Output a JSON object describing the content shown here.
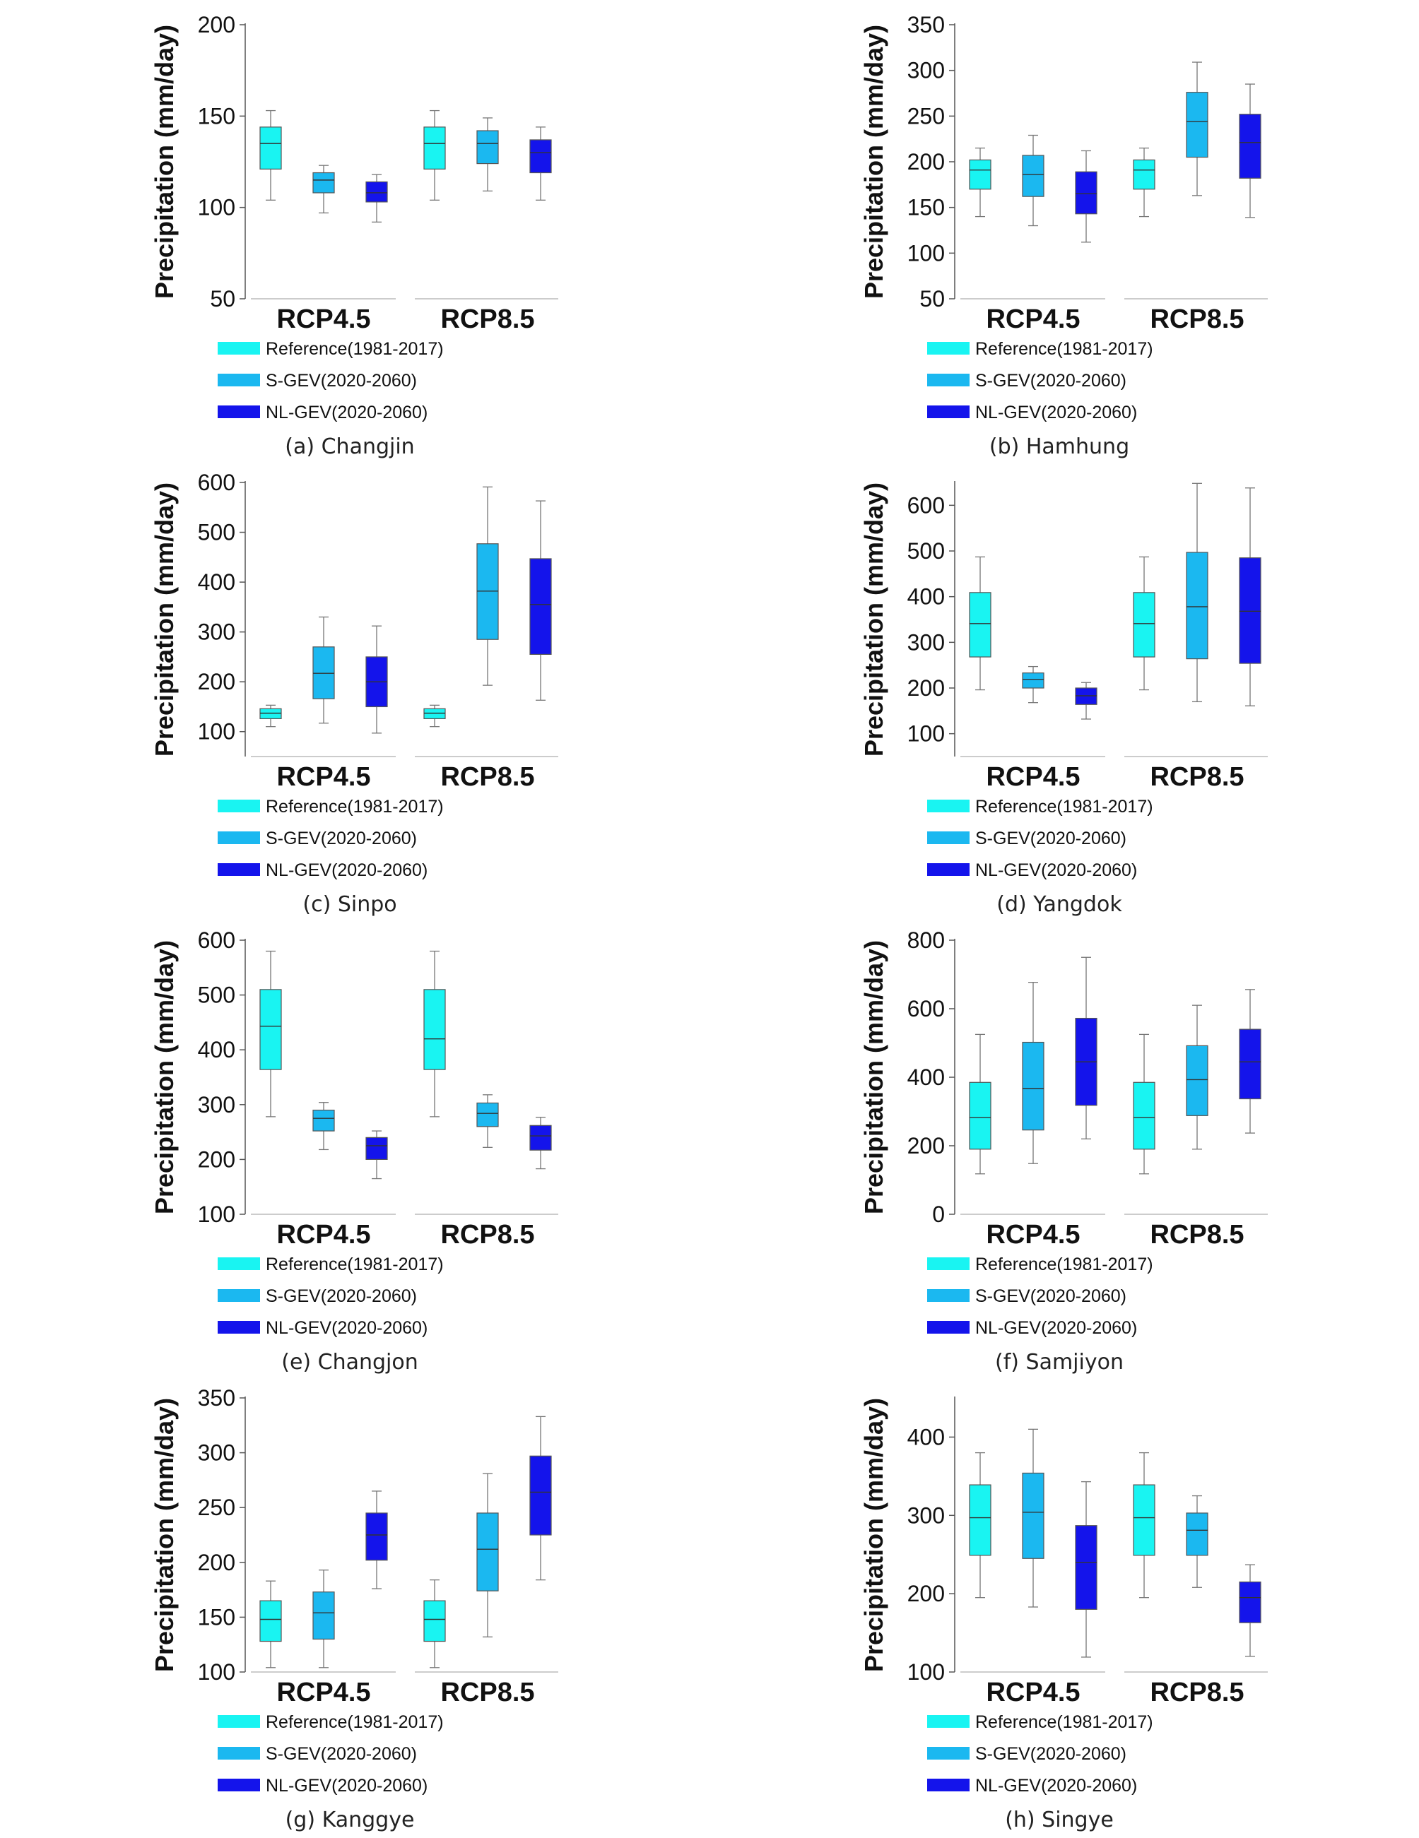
{
  "legend": {
    "items": [
      {
        "label": "Reference(1981-2017)",
        "color": "#19f4f2"
      },
      {
        "label": "S-GEV(2020-2060)",
        "color": "#1bb8f0"
      },
      {
        "label": "NL-GEV(2020-2060)",
        "color": "#1414eb"
      }
    ]
  },
  "chart_data": [
    {
      "type": "box",
      "caption": "(a) Changjin",
      "ylabel": "Precipitation (mm/day)",
      "categories": [
        "RCP4.5",
        "RCP8.5"
      ],
      "ylim": [
        50,
        200
      ],
      "yticks": [
        50,
        100,
        150,
        200
      ],
      "series": [
        {
          "name": "Reference(1981-2017)",
          "boxes": [
            {
              "min": 104,
              "q1": 121,
              "median": 135,
              "q3": 144,
              "max": 153
            },
            {
              "min": 104,
              "q1": 121,
              "median": 135,
              "q3": 144,
              "max": 153
            }
          ]
        },
        {
          "name": "S-GEV(2020-2060)",
          "boxes": [
            {
              "min": 97,
              "q1": 108,
              "median": 115,
              "q3": 119,
              "max": 123
            },
            {
              "min": 109,
              "q1": 124,
              "median": 135,
              "q3": 142,
              "max": 149
            }
          ]
        },
        {
          "name": "NL-GEV(2020-2060)",
          "boxes": [
            {
              "min": 92,
              "q1": 103,
              "median": 108,
              "q3": 114,
              "max": 118
            },
            {
              "min": 104,
              "q1": 119,
              "median": 130,
              "q3": 137,
              "max": 144
            }
          ]
        }
      ]
    },
    {
      "type": "box",
      "caption": "(b) Hamhung",
      "ylabel": "Precipitation (mm/day)",
      "categories": [
        "RCP4.5",
        "RCP8.5"
      ],
      "ylim": [
        50,
        350
      ],
      "yticks": [
        50,
        100,
        150,
        200,
        250,
        300,
        350
      ],
      "series": [
        {
          "name": "Reference(1981-2017)",
          "boxes": [
            {
              "min": 140,
              "q1": 170,
              "median": 191,
              "q3": 202,
              "max": 215
            },
            {
              "min": 140,
              "q1": 170,
              "median": 191,
              "q3": 202,
              "max": 215
            }
          ]
        },
        {
          "name": "S-GEV(2020-2060)",
          "boxes": [
            {
              "min": 130,
              "q1": 162,
              "median": 186,
              "q3": 207,
              "max": 229
            },
            {
              "min": 163,
              "q1": 205,
              "median": 244,
              "q3": 276,
              "max": 309
            }
          ]
        },
        {
          "name": "NL-GEV(2020-2060)",
          "boxes": [
            {
              "min": 112,
              "q1": 143,
              "median": 165,
              "q3": 189,
              "max": 212
            },
            {
              "min": 139,
              "q1": 182,
              "median": 221,
              "q3": 252,
              "max": 285
            }
          ]
        }
      ]
    },
    {
      "type": "box",
      "caption": "(c) Sinpo",
      "ylabel": "Precipitation (mm/day)",
      "categories": [
        "RCP4.5",
        "RCP8.5"
      ],
      "ylim": [
        50,
        600
      ],
      "yticks": [
        100,
        200,
        300,
        400,
        500,
        600
      ],
      "series": [
        {
          "name": "Reference(1981-2017)",
          "boxes": [
            {
              "min": 110,
              "q1": 126,
              "median": 137,
              "q3": 146,
              "max": 153
            },
            {
              "min": 110,
              "q1": 126,
              "median": 137,
              "q3": 146,
              "max": 153
            }
          ]
        },
        {
          "name": "S-GEV(2020-2060)",
          "boxes": [
            {
              "min": 117,
              "q1": 166,
              "median": 217,
              "q3": 270,
              "max": 330
            },
            {
              "min": 193,
              "q1": 285,
              "median": 382,
              "q3": 477,
              "max": 591
            }
          ]
        },
        {
          "name": "NL-GEV(2020-2060)",
          "boxes": [
            {
              "min": 97,
              "q1": 150,
              "median": 200,
              "q3": 250,
              "max": 312
            },
            {
              "min": 163,
              "q1": 255,
              "median": 355,
              "q3": 447,
              "max": 563
            }
          ]
        }
      ]
    },
    {
      "type": "box",
      "caption": "(d) Yangdok",
      "ylabel": "Precipitation (mm/day)",
      "categories": [
        "RCP4.5",
        "RCP8.5"
      ],
      "ylim": [
        50,
        650
      ],
      "yticks": [
        100,
        200,
        300,
        400,
        500,
        600
      ],
      "series": [
        {
          "name": "Reference(1981-2017)",
          "boxes": [
            {
              "min": 196,
              "q1": 268,
              "median": 341,
              "q3": 409,
              "max": 487
            },
            {
              "min": 196,
              "q1": 268,
              "median": 341,
              "q3": 409,
              "max": 487
            }
          ]
        },
        {
          "name": "S-GEV(2020-2060)",
          "boxes": [
            {
              "min": 168,
              "q1": 200,
              "median": 219,
              "q3": 233,
              "max": 247
            },
            {
              "min": 170,
              "q1": 264,
              "median": 378,
              "q3": 497,
              "max": 648
            }
          ]
        },
        {
          "name": "NL-GEV(2020-2060)",
          "boxes": [
            {
              "min": 132,
              "q1": 164,
              "median": 183,
              "q3": 200,
              "max": 212
            },
            {
              "min": 161,
              "q1": 254,
              "median": 368,
              "q3": 485,
              "max": 638
            }
          ]
        }
      ]
    },
    {
      "type": "box",
      "caption": "(e) Changjon",
      "ylabel": "Precipitation (mm/day)",
      "categories": [
        "RCP4.5",
        "RCP8.5"
      ],
      "ylim": [
        100,
        600
      ],
      "yticks": [
        100,
        200,
        300,
        400,
        500,
        600
      ],
      "series": [
        {
          "name": "Reference(1981-2017)",
          "boxes": [
            {
              "min": 278,
              "q1": 364,
              "median": 443,
              "q3": 510,
              "max": 580
            },
            {
              "min": 278,
              "q1": 364,
              "median": 420,
              "q3": 510,
              "max": 580
            }
          ]
        },
        {
          "name": "S-GEV(2020-2060)",
          "boxes": [
            {
              "min": 218,
              "q1": 252,
              "median": 275,
              "q3": 290,
              "max": 304
            },
            {
              "min": 222,
              "q1": 260,
              "median": 284,
              "q3": 303,
              "max": 318
            }
          ]
        },
        {
          "name": "NL-GEV(2020-2060)",
          "boxes": [
            {
              "min": 165,
              "q1": 200,
              "median": 225,
              "q3": 240,
              "max": 252
            },
            {
              "min": 183,
              "q1": 217,
              "median": 243,
              "q3": 262,
              "max": 277
            }
          ]
        }
      ]
    },
    {
      "type": "box",
      "caption": "(f) Samjiyon",
      "ylabel": "Precipitation (mm/day)",
      "categories": [
        "RCP4.5",
        "RCP8.5"
      ],
      "ylim": [
        0,
        800
      ],
      "yticks": [
        0,
        200,
        400,
        600,
        800
      ],
      "series": [
        {
          "name": "Reference(1981-2017)",
          "boxes": [
            {
              "min": 118,
              "q1": 190,
              "median": 282,
              "q3": 385,
              "max": 525
            },
            {
              "min": 118,
              "q1": 190,
              "median": 282,
              "q3": 385,
              "max": 525
            }
          ]
        },
        {
          "name": "S-GEV(2020-2060)",
          "boxes": [
            {
              "min": 148,
              "q1": 246,
              "median": 367,
              "q3": 502,
              "max": 677
            },
            {
              "min": 190,
              "q1": 288,
              "median": 393,
              "q3": 492,
              "max": 610
            }
          ]
        },
        {
          "name": "NL-GEV(2020-2060)",
          "boxes": [
            {
              "min": 220,
              "q1": 318,
              "median": 445,
              "q3": 572,
              "max": 750
            },
            {
              "min": 237,
              "q1": 337,
              "median": 445,
              "q3": 540,
              "max": 656
            }
          ]
        }
      ]
    },
    {
      "type": "box",
      "caption": "(g) Kanggye",
      "ylabel": "Precipitation (mm/day)",
      "categories": [
        "RCP4.5",
        "RCP8.5"
      ],
      "ylim": [
        100,
        350
      ],
      "yticks": [
        100,
        150,
        200,
        250,
        300,
        350
      ],
      "series": [
        {
          "name": "Reference(1981-2017)",
          "boxes": [
            {
              "min": 104,
              "q1": 128,
              "median": 148,
              "q3": 165,
              "max": 183
            },
            {
              "min": 104,
              "q1": 128,
              "median": 148,
              "q3": 165,
              "max": 184
            }
          ]
        },
        {
          "name": "S-GEV(2020-2060)",
          "boxes": [
            {
              "min": 104,
              "q1": 130,
              "median": 154,
              "q3": 173,
              "max": 193
            },
            {
              "min": 132,
              "q1": 174,
              "median": 212,
              "q3": 245,
              "max": 281
            }
          ]
        },
        {
          "name": "NL-GEV(2020-2060)",
          "boxes": [
            {
              "min": 176,
              "q1": 202,
              "median": 225,
              "q3": 245,
              "max": 265
            },
            {
              "min": 184,
              "q1": 225,
              "median": 264,
              "q3": 297,
              "max": 333
            }
          ]
        }
      ]
    },
    {
      "type": "box",
      "caption": "(h) Singye",
      "ylabel": "Precipitation (mm/day)",
      "categories": [
        "RCP4.5",
        "RCP8.5"
      ],
      "ylim": [
        100,
        450
      ],
      "yticks": [
        100,
        200,
        300,
        400
      ],
      "series": [
        {
          "name": "Reference(1981-2017)",
          "boxes": [
            {
              "min": 195,
              "q1": 249,
              "median": 297,
              "q3": 339,
              "max": 380
            },
            {
              "min": 195,
              "q1": 249,
              "median": 297,
              "q3": 339,
              "max": 380
            }
          ]
        },
        {
          "name": "S-GEV(2020-2060)",
          "boxes": [
            {
              "min": 183,
              "q1": 245,
              "median": 304,
              "q3": 354,
              "max": 410
            },
            {
              "min": 208,
              "q1": 249,
              "median": 281,
              "q3": 303,
              "max": 325
            }
          ]
        },
        {
          "name": "NL-GEV(2020-2060)",
          "boxes": [
            {
              "min": 119,
              "q1": 180,
              "median": 240,
              "q3": 287,
              "max": 343
            },
            {
              "min": 120,
              "q1": 163,
              "median": 195,
              "q3": 215,
              "max": 237
            }
          ]
        }
      ]
    }
  ]
}
